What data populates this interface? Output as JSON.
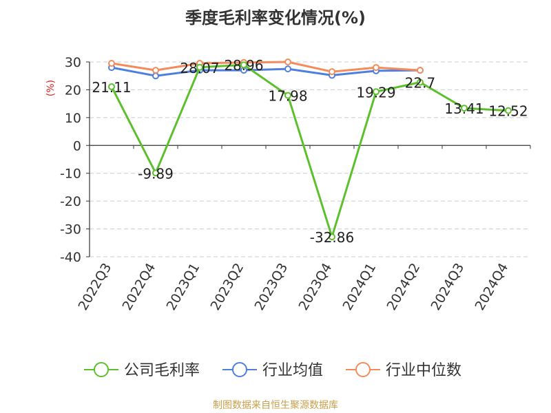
{
  "chart_data": {
    "type": "line",
    "title": "季度毛利率变化情况(%)",
    "ylabel": "(%)",
    "xlabel": "",
    "ylim": [
      -40,
      30
    ],
    "yticks": [
      30,
      20,
      10,
      0,
      -10,
      -20,
      -30,
      -40
    ],
    "categories": [
      "2022Q3",
      "2022Q4",
      "2023Q1",
      "2023Q2",
      "2023Q3",
      "2023Q4",
      "2024Q1",
      "2024Q2",
      "2024Q3",
      "2024Q4"
    ],
    "grid": true,
    "legend_position": "bottom",
    "series": [
      {
        "name": "公司毛利率",
        "color": "#5bc02c",
        "values": [
          21.11,
          -9.89,
          28.07,
          28.96,
          17.98,
          -32.86,
          19.29,
          22.7,
          13.41,
          12.52
        ],
        "labels": [
          "21.11",
          "-9.89",
          "28.07",
          "28.96",
          "17.98",
          "-32.86",
          "19.29",
          "22.7",
          "13.41",
          "12.52"
        ]
      },
      {
        "name": "行业均值",
        "color": "#4e7fdf",
        "values": [
          28.0,
          25.0,
          27.0,
          27.0,
          27.5,
          25.2,
          26.8,
          27.0,
          null,
          null
        ]
      },
      {
        "name": "行业中位数",
        "color": "#f38b5a",
        "values": [
          29.5,
          27.0,
          29.5,
          29.8,
          30.0,
          26.5,
          28.0,
          27.0,
          null,
          null
        ]
      }
    ]
  },
  "footer": {
    "source": "制图数据来自恒生聚源数据库"
  }
}
